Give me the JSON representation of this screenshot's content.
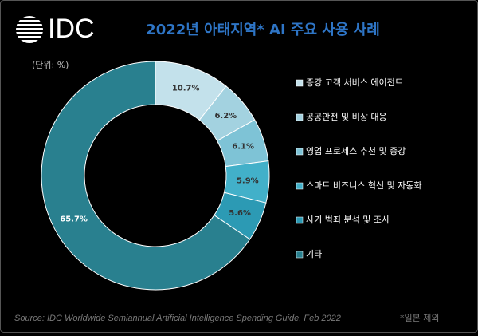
{
  "logo": {
    "text": "IDC"
  },
  "chart_data": {
    "type": "donut",
    "title": "2022년 아태지역* AI 주요 사용 사례",
    "subtitle": "(단위: %)",
    "categories": [
      "증강 고객 서비스 에이전트",
      "공공안전 및 비상 대응",
      "영업 프로세스 추천 및 증강",
      "스마트 비즈니스 혁신 및 자동화",
      "사기 범죄 분석 및 조사",
      "기타"
    ],
    "values": [
      10.7,
      6.2,
      6.1,
      5.9,
      5.6,
      65.7
    ],
    "value_labels": [
      "10.7%",
      "6.2%",
      "6.1%",
      "5.9%",
      "5.6%",
      "65.7%"
    ],
    "colors": [
      "#c3e1eb",
      "#a3d2e0",
      "#7ec3d6",
      "#42b0c9",
      "#2c9ab4",
      "#29808f"
    ],
    "legend": "right",
    "source": "Source: IDC Worldwide Semiannual Artificial Intelligence Spending Guide, Feb 2022",
    "note": "*일본 제외"
  }
}
